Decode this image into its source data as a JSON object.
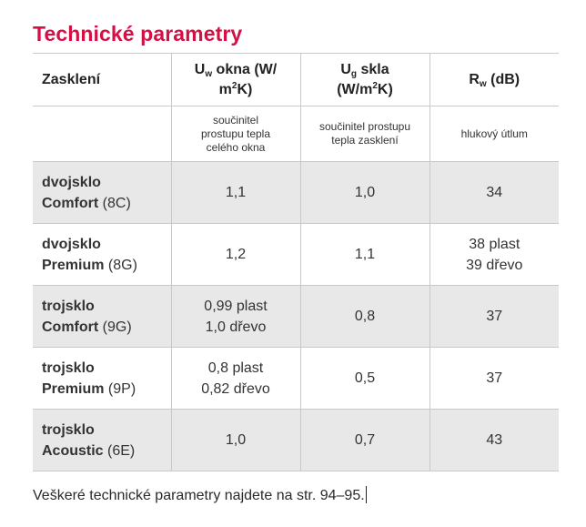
{
  "title": "Technické parametry",
  "header": {
    "col1": "Zasklení",
    "col2": {
      "sym": "U",
      "sub": "w",
      "pre": " okna (W/",
      "unit_base": "m",
      "unit_sup": "2",
      "unit_end": "K)"
    },
    "col3": {
      "sym": "U",
      "sub": "g",
      "pre": " skla",
      "unit_pre": "(W/m",
      "unit_sup": "2",
      "unit_end": "K)"
    },
    "col4": {
      "sym": "R",
      "sub": "w",
      "rest": " (dB)"
    }
  },
  "subheader": {
    "col2": [
      "součinitel",
      "prostupu tepla",
      "celého okna"
    ],
    "col3": [
      "součinitel prostupu",
      "tepla zasklení"
    ],
    "col4": [
      "hlukový útlum"
    ]
  },
  "rows": [
    {
      "name": [
        "dvojsklo",
        "Comfort"
      ],
      "code": "(8C)",
      "uw": [
        "1,1"
      ],
      "ug": "1,0",
      "rw": [
        "34"
      ]
    },
    {
      "name": [
        "dvojsklo",
        "Premium"
      ],
      "code": "(8G)",
      "uw": [
        "1,2"
      ],
      "ug": "1,1",
      "rw": [
        "38 plast",
        "39 dřevo"
      ]
    },
    {
      "name": [
        "trojsklo",
        "Comfort"
      ],
      "code": "(9G)",
      "uw": [
        "0,99 plast",
        "1,0 dřevo"
      ],
      "ug": "0,8",
      "rw": [
        "37"
      ]
    },
    {
      "name": [
        "trojsklo",
        "Premium"
      ],
      "code": "(9P)",
      "uw": [
        "0,8 plast",
        "0,82 dřevo"
      ],
      "ug": "0,5",
      "rw": [
        "37"
      ]
    },
    {
      "name": [
        "trojsklo",
        "Acoustic"
      ],
      "code": "(6E)",
      "uw": [
        "1,0"
      ],
      "ug": "0,7",
      "rw": [
        "43"
      ]
    }
  ],
  "footnote": "Veškeré technické parametry najdete na str. 94–95.",
  "colors": {
    "accent": "#d31145",
    "row_gray": "#e8e8e8",
    "border": "#c9c9c9"
  }
}
